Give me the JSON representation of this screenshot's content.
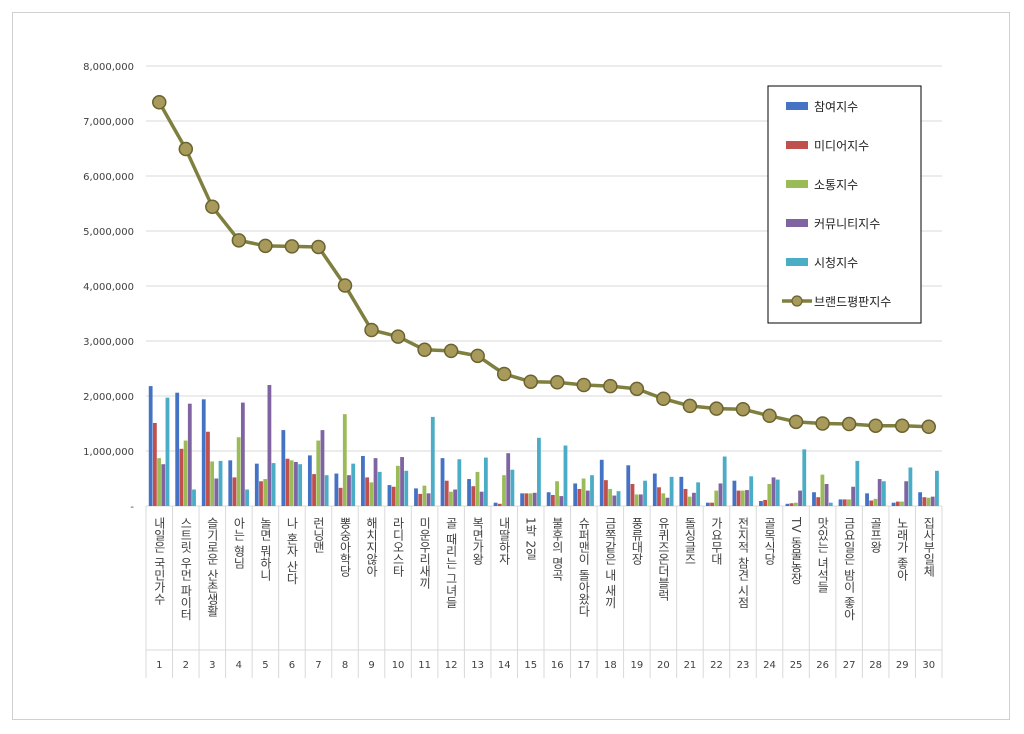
{
  "chart_data": {
    "type": "bar",
    "ylim": [
      0,
      8000000
    ],
    "yticks": [
      "-",
      "1,000,000",
      "2,000,000",
      "3,000,000",
      "4,000,000",
      "5,000,000",
      "6,000,000",
      "7,000,000",
      "8,000,000"
    ],
    "grid": true,
    "legend_position": "top-right",
    "ranks": [
      "1",
      "2",
      "3",
      "4",
      "5",
      "6",
      "7",
      "8",
      "9",
      "10",
      "11",
      "12",
      "13",
      "14",
      "15",
      "16",
      "17",
      "18",
      "19",
      "20",
      "21",
      "22",
      "23",
      "24",
      "25",
      "26",
      "27",
      "28",
      "29",
      "30"
    ],
    "categories": [
      "내일은 국민가수",
      "스트릿 우먼 파이터",
      "슬기로운 산촌생활",
      "아는 형님",
      "놀면 뭐하니",
      "나 혼자 산다",
      "런닝맨",
      "뽕숭아학당",
      "해치지않아",
      "라디오스타",
      "미운우리새끼",
      "골 때리는 그녀들",
      "복면가왕",
      "내딸하자",
      "1박 2일",
      "불후의 명곡",
      "슈퍼맨이 돌아왔다",
      "금쪽같은 내 새끼",
      "풍류대장",
      "유퀴즈온더블럭",
      "돌싱글즈",
      "가요무대",
      "전지적 참견 시점",
      "골목식당",
      "TV 동물농장",
      "맛있는 녀석들",
      "금요일은 밤이 좋아",
      "골프왕",
      "노래가 좋아",
      "집사부일체"
    ],
    "series": [
      {
        "name": "참여지수",
        "type": "bar",
        "color": "#4472c4",
        "values": [
          2180000,
          2060000,
          1940000,
          830000,
          770000,
          1380000,
          920000,
          590000,
          910000,
          380000,
          320000,
          870000,
          490000,
          60000,
          230000,
          250000,
          410000,
          840000,
          740000,
          590000,
          530000,
          60000,
          460000,
          90000,
          40000,
          250000,
          120000,
          230000,
          60000,
          250000
        ]
      },
      {
        "name": "미디어지수",
        "type": "bar",
        "color": "#c0504d",
        "values": [
          1510000,
          1040000,
          1350000,
          520000,
          450000,
          860000,
          580000,
          330000,
          520000,
          350000,
          220000,
          460000,
          360000,
          40000,
          230000,
          200000,
          310000,
          470000,
          400000,
          340000,
          310000,
          60000,
          280000,
          110000,
          50000,
          160000,
          120000,
          100000,
          80000,
          160000
        ]
      },
      {
        "name": "소통지수",
        "type": "bar",
        "color": "#9bbb59",
        "values": [
          870000,
          1190000,
          810000,
          1250000,
          490000,
          830000,
          1190000,
          1670000,
          430000,
          730000,
          370000,
          260000,
          620000,
          560000,
          230000,
          450000,
          500000,
          310000,
          210000,
          230000,
          170000,
          280000,
          280000,
          400000,
          60000,
          570000,
          120000,
          130000,
          80000,
          150000
        ]
      },
      {
        "name": "커뮤니티지수",
        "type": "bar",
        "color": "#8064a2",
        "values": [
          760000,
          1860000,
          500000,
          1880000,
          2200000,
          800000,
          1380000,
          560000,
          870000,
          890000,
          230000,
          300000,
          260000,
          960000,
          240000,
          180000,
          280000,
          190000,
          210000,
          150000,
          240000,
          410000,
          290000,
          520000,
          280000,
          400000,
          350000,
          490000,
          450000,
          170000
        ]
      },
      {
        "name": "시청지수",
        "type": "bar",
        "color": "#4bacc6",
        "values": [
          1970000,
          300000,
          820000,
          300000,
          780000,
          760000,
          560000,
          770000,
          620000,
          640000,
          1620000,
          850000,
          880000,
          660000,
          1240000,
          1100000,
          560000,
          270000,
          460000,
          530000,
          430000,
          900000,
          540000,
          480000,
          1030000,
          60000,
          820000,
          450000,
          700000,
          640000
        ]
      },
      {
        "name": "브랜드평판지수",
        "type": "line",
        "color": "#7f7f3f",
        "values": [
          7340000,
          6490000,
          5440000,
          4830000,
          4730000,
          4720000,
          4710000,
          4010000,
          3200000,
          3080000,
          2840000,
          2820000,
          2730000,
          2400000,
          2260000,
          2250000,
          2200000,
          2180000,
          2130000,
          1950000,
          1820000,
          1770000,
          1760000,
          1640000,
          1530000,
          1500000,
          1490000,
          1460000,
          1460000,
          1440000
        ]
      }
    ]
  }
}
